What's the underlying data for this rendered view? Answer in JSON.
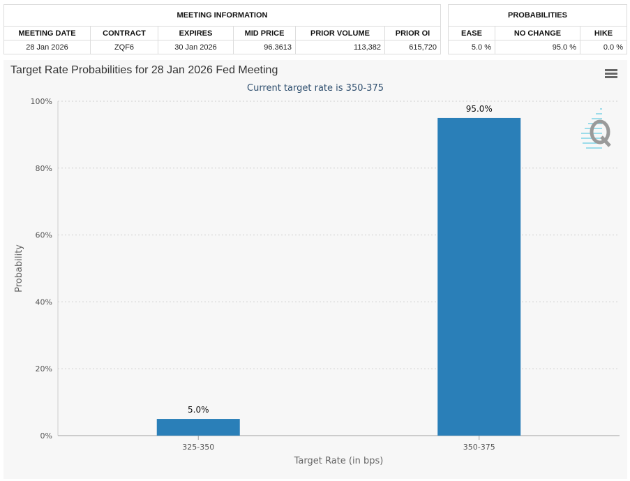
{
  "meeting_info": {
    "group_header": "MEETING INFORMATION",
    "columns": [
      "MEETING DATE",
      "CONTRACT",
      "EXPIRES",
      "MID PRICE",
      "PRIOR VOLUME",
      "PRIOR OI"
    ],
    "row": [
      "28 Jan 2026",
      "ZQF6",
      "30 Jan 2026",
      "96.3613",
      "113,382",
      "615,720"
    ]
  },
  "probabilities": {
    "group_header": "PROBABILITIES",
    "columns": [
      "EASE",
      "NO CHANGE",
      "HIKE"
    ],
    "row": [
      "5.0 %",
      "95.0 %",
      "0.0 %"
    ]
  },
  "chart": {
    "title": "Target Rate Probabilities for 28 Jan 2026 Fed Meeting",
    "subtitle": "Current target rate is 350-375",
    "menu_icon": "hamburger-menu-icon",
    "watermark_icon": "q-logo-icon"
  },
  "chart_data": {
    "type": "bar",
    "title": "Target Rate Probabilities for 28 Jan 2026 Fed Meeting",
    "subtitle": "Current target rate is 350-375",
    "xlabel": "Target Rate (in bps)",
    "ylabel": "Probability",
    "categories": [
      "325-350",
      "350-375"
    ],
    "values": [
      5.0,
      95.0
    ],
    "data_labels": [
      "5.0%",
      "95.0%"
    ],
    "ylim": [
      0,
      100
    ],
    "yticks": [
      0,
      20,
      40,
      60,
      80,
      100
    ],
    "ytick_labels": [
      "0%",
      "20%",
      "40%",
      "60%",
      "80%",
      "100%"
    ],
    "grid": true,
    "legend": "none",
    "bar_color": "#2a7fb8"
  }
}
